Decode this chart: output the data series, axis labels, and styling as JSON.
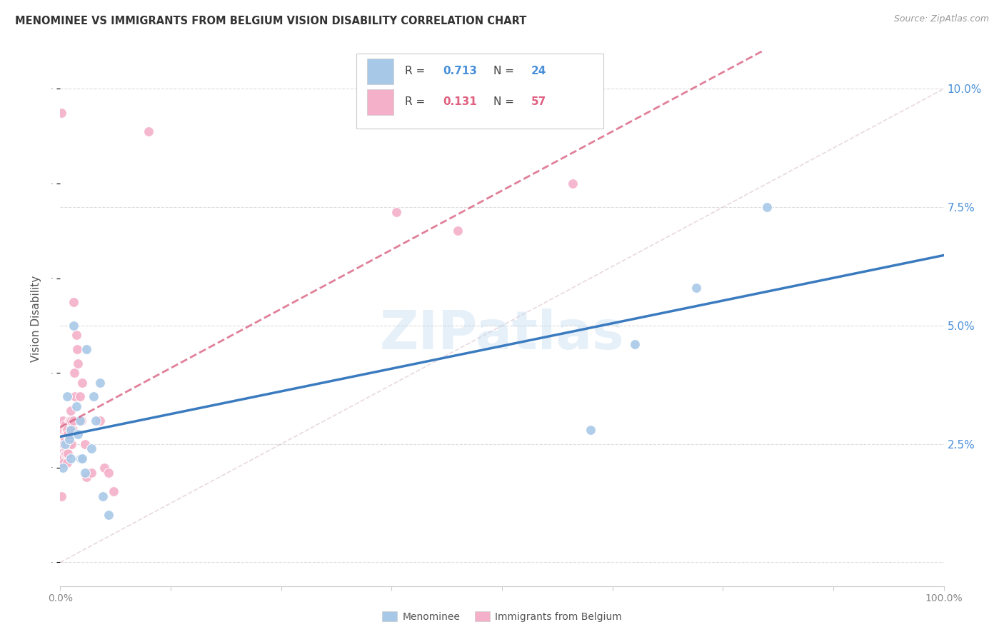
{
  "title": "MENOMINEE VS IMMIGRANTS FROM BELGIUM VISION DISABILITY CORRELATION CHART",
  "source": "Source: ZipAtlas.com",
  "ylabel": "Vision Disability",
  "yticks": [
    0.0,
    0.025,
    0.05,
    0.075,
    0.1
  ],
  "ytick_labels": [
    "",
    "2.5%",
    "5.0%",
    "7.5%",
    "10.0%"
  ],
  "xlim": [
    0.0,
    1.0
  ],
  "ylim": [
    -0.005,
    0.108
  ],
  "watermark": "ZIPatlas",
  "blue_color": "#a8c8e8",
  "pink_color": "#f4b0c8",
  "blue_line_color": "#3a7bbf",
  "pink_line_color": "#d96080",
  "diag_color": "#d4a0b0",
  "blue_scatter_x": [
    0.003,
    0.005,
    0.008,
    0.01,
    0.012,
    0.012,
    0.015,
    0.018,
    0.02,
    0.022,
    0.023,
    0.025,
    0.028,
    0.03,
    0.035,
    0.038,
    0.04,
    0.045,
    0.048,
    0.055,
    0.6,
    0.65,
    0.72,
    0.8
  ],
  "blue_scatter_y": [
    0.02,
    0.025,
    0.035,
    0.026,
    0.022,
    0.028,
    0.05,
    0.033,
    0.027,
    0.03,
    0.022,
    0.022,
    0.019,
    0.045,
    0.024,
    0.035,
    0.03,
    0.038,
    0.014,
    0.01,
    0.028,
    0.046,
    0.058,
    0.075
  ],
  "pink_scatter_x": [
    0.001,
    0.001,
    0.001,
    0.001,
    0.001,
    0.002,
    0.002,
    0.002,
    0.003,
    0.003,
    0.003,
    0.004,
    0.004,
    0.004,
    0.005,
    0.005,
    0.005,
    0.006,
    0.006,
    0.007,
    0.007,
    0.008,
    0.008,
    0.008,
    0.009,
    0.009,
    0.01,
    0.01,
    0.011,
    0.011,
    0.012,
    0.012,
    0.013,
    0.013,
    0.014,
    0.015,
    0.015,
    0.016,
    0.017,
    0.018,
    0.019,
    0.02,
    0.022,
    0.024,
    0.025,
    0.028,
    0.03,
    0.035,
    0.045,
    0.05,
    0.055,
    0.06,
    0.1,
    0.38,
    0.45,
    0.58,
    0.001
  ],
  "pink_scatter_y": [
    0.029,
    0.024,
    0.023,
    0.021,
    0.014,
    0.028,
    0.025,
    0.022,
    0.03,
    0.025,
    0.022,
    0.028,
    0.025,
    0.021,
    0.029,
    0.026,
    0.023,
    0.028,
    0.024,
    0.027,
    0.023,
    0.028,
    0.025,
    0.021,
    0.027,
    0.023,
    0.03,
    0.026,
    0.03,
    0.025,
    0.032,
    0.028,
    0.03,
    0.025,
    0.028,
    0.055,
    0.03,
    0.04,
    0.035,
    0.048,
    0.045,
    0.042,
    0.035,
    0.03,
    0.038,
    0.025,
    0.018,
    0.019,
    0.03,
    0.02,
    0.019,
    0.015,
    0.091,
    0.074,
    0.07,
    0.08,
    0.095
  ],
  "background_color": "#ffffff",
  "grid_color": "#dddddd",
  "label1": "Menominee",
  "label2": "Immigrants from Belgium"
}
